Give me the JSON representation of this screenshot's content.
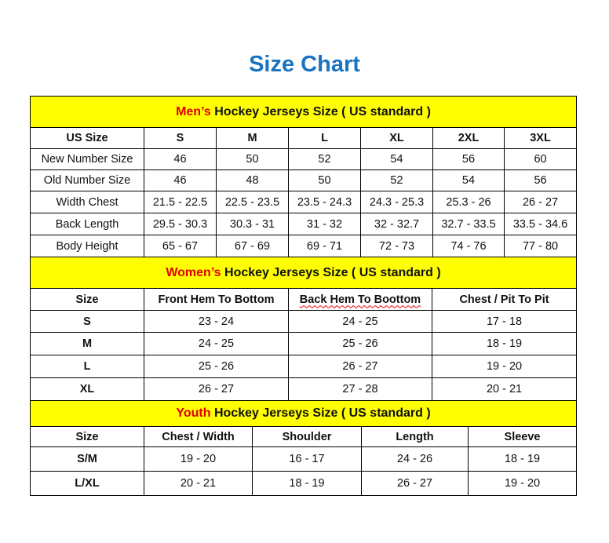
{
  "title": "Size Chart",
  "colors": {
    "title": "#1a73c0",
    "header_bg": "#ffff00",
    "accent": "#e00000"
  },
  "men": {
    "accent": "Men’s",
    "heading": " Hockey Jerseys Size ( US standard )",
    "columns": [
      "US Size",
      "S",
      "M",
      "L",
      "XL",
      "2XL",
      "3XL"
    ],
    "rows": [
      [
        "New Number Size",
        "46",
        "50",
        "52",
        "54",
        "56",
        "60"
      ],
      [
        "Old Number Size",
        "46",
        "48",
        "50",
        "52",
        "54",
        "56"
      ],
      [
        "Width Chest",
        "21.5 - 22.5",
        "22.5 - 23.5",
        "23.5 - 24.3",
        "24.3 - 25.3",
        "25.3 - 26",
        "26 - 27"
      ],
      [
        "Back Length",
        "29.5 - 30.3",
        "30.3 - 31",
        "31 - 32",
        "32 - 32.7",
        "32.7 - 33.5",
        "33.5 - 34.6"
      ],
      [
        "Body Height",
        "65 - 67",
        "67 - 69",
        "69 - 71",
        "72 - 73",
        "74 - 76",
        "77 - 80"
      ]
    ]
  },
  "women": {
    "accent": "Women’s",
    "heading": " Hockey Jerseys Size ( US standard )",
    "columns": [
      "Size",
      "Front Hem To Bottom",
      "Back Hem To Boottom",
      "Chest / Pit To Pit"
    ],
    "rows": [
      [
        "S",
        "23 - 24",
        "24 - 25",
        "17 - 18"
      ],
      [
        "M",
        "24 - 25",
        "25 - 26",
        "18 - 19"
      ],
      [
        "L",
        "25 - 26",
        "26 - 27",
        "19 - 20"
      ],
      [
        "XL",
        "26 - 27",
        "27 - 28",
        "20 - 21"
      ]
    ]
  },
  "youth": {
    "accent": "Youth",
    "heading": " Hockey Jerseys Size ( US standard )",
    "columns": [
      "Size",
      "Chest / Width",
      "Shoulder",
      "Length",
      "Sleeve"
    ],
    "rows": [
      [
        "S/M",
        "19 - 20",
        "16 - 17",
        "24 - 26",
        "18 - 19"
      ],
      [
        "L/XL",
        "20 - 21",
        "18 - 19",
        "26 - 27",
        "19 - 20"
      ]
    ]
  }
}
